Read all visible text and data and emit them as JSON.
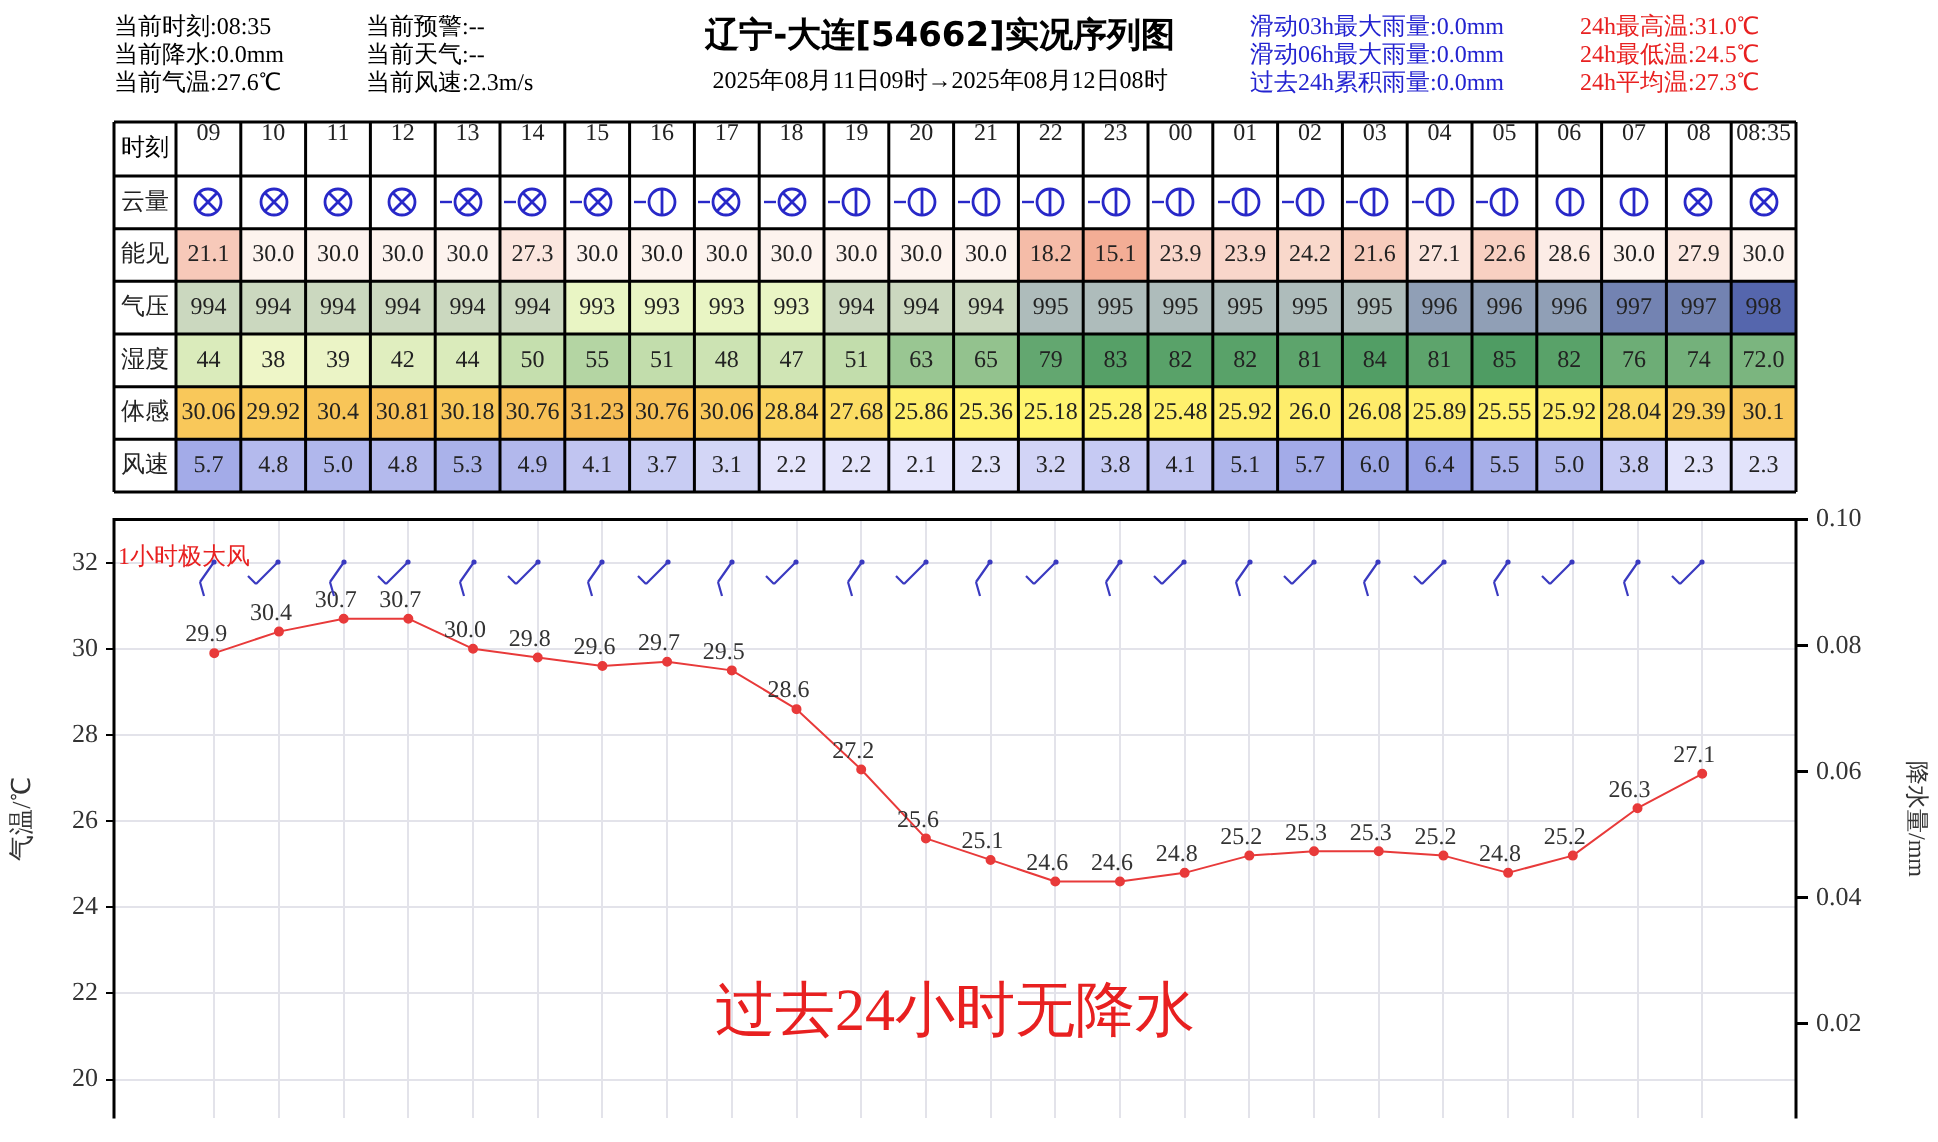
{
  "chart_data": [
    {
      "type": "heatmap",
      "title": "辽宁-大连[54662]实况序列图",
      "subtitle": "2025年08月11日09时→2025年08月12日08时",
      "xlabel": "时刻",
      "categories": [
        "09",
        "10",
        "11",
        "12",
        "13",
        "14",
        "15",
        "16",
        "17",
        "18",
        "19",
        "20",
        "21",
        "22",
        "23",
        "00",
        "01",
        "02",
        "03",
        "04",
        "05",
        "06",
        "07",
        "08",
        "08:35"
      ],
      "y_categories": [
        "云量",
        "能见",
        "气压",
        "湿度",
        "体感",
        "风速"
      ],
      "cells": [
        [
          null,
          null,
          null,
          null,
          null,
          null,
          null,
          null,
          null,
          null,
          null,
          null,
          null,
          null,
          null,
          null,
          null,
          null,
          null,
          null,
          null,
          null,
          null,
          null,
          null
        ],
        [
          21.1,
          30.0,
          30.0,
          30.0,
          30.0,
          27.3,
          30.0,
          30.0,
          30.0,
          30.0,
          30.0,
          30.0,
          30.0,
          18.2,
          15.1,
          23.9,
          23.9,
          24.2,
          21.6,
          27.1,
          22.6,
          28.6,
          30.0,
          27.9,
          30.0
        ],
        [
          994,
          994,
          994,
          994,
          994,
          994,
          993,
          993,
          993,
          993,
          994,
          994,
          994,
          995,
          995,
          995,
          995,
          995,
          995,
          996,
          996,
          996,
          997,
          997,
          998
        ],
        [
          44,
          38,
          39,
          42,
          44,
          50,
          55,
          51,
          48,
          47,
          51,
          63,
          65,
          79,
          83,
          82,
          82,
          81,
          84,
          81,
          85,
          82,
          76,
          74,
          72.0
        ],
        [
          30.06,
          29.92,
          30.4,
          30.81,
          30.18,
          30.76,
          31.23,
          30.76,
          30.06,
          28.84,
          27.68,
          25.86,
          25.36,
          25.18,
          25.28,
          25.48,
          25.92,
          26.0,
          26.08,
          25.89,
          25.55,
          25.92,
          28.04,
          29.39,
          30.1
        ],
        [
          5.7,
          4.8,
          5.0,
          4.8,
          5.3,
          4.9,
          4.1,
          3.7,
          3.1,
          2.2,
          2.2,
          2.1,
          2.3,
          3.2,
          3.8,
          4.1,
          5.1,
          5.7,
          6.0,
          6.4,
          5.5,
          5.0,
          3.8,
          2.3,
          2.3
        ]
      ],
      "cell_labels": [
        [
          null,
          null,
          null,
          null,
          null,
          null,
          null,
          null,
          null,
          null,
          null,
          null,
          null,
          null,
          null,
          null,
          null,
          null,
          null,
          null,
          null,
          null,
          null,
          null,
          null
        ],
        [
          "21.1",
          "30.0",
          "30.0",
          "30.0",
          "30.0",
          "27.3",
          "30.0",
          "30.0",
          "30.0",
          "30.0",
          "30.0",
          "30.0",
          "30.0",
          "18.2",
          "15.1",
          "23.9",
          "23.9",
          "24.2",
          "21.6",
          "27.1",
          "22.6",
          "28.6",
          "30.0",
          "27.9",
          "30.0"
        ],
        [
          "994",
          "994",
          "994",
          "994",
          "994",
          "994",
          "993",
          "993",
          "993",
          "993",
          "994",
          "994",
          "994",
          "995",
          "995",
          "995",
          "995",
          "995",
          "995",
          "996",
          "996",
          "996",
          "997",
          "997",
          "998"
        ],
        [
          "44",
          "38",
          "39",
          "42",
          "44",
          "50",
          "55",
          "51",
          "48",
          "47",
          "51",
          "63",
          "65",
          "79",
          "83",
          "82",
          "82",
          "81",
          "84",
          "81",
          "85",
          "82",
          "76",
          "74",
          "72.0"
        ],
        [
          "30.06",
          "29.92",
          "30.4",
          "30.81",
          "30.18",
          "30.76",
          "31.23",
          "30.76",
          "30.06",
          "28.84",
          "27.68",
          "25.86",
          "25.36",
          "25.18",
          "25.28",
          "25.48",
          "25.92",
          "26.0",
          "26.08",
          "25.89",
          "25.55",
          "25.92",
          "28.04",
          "29.39",
          "30.1"
        ],
        [
          "5.7",
          "4.8",
          "5.0",
          "4.8",
          "5.3",
          "4.9",
          "4.1",
          "3.7",
          "3.1",
          "2.2",
          "2.2",
          "2.1",
          "2.3",
          "3.2",
          "3.8",
          "4.1",
          "5.1",
          "5.7",
          "6.0",
          "6.4",
          "5.5",
          "5.0",
          "3.8",
          "2.3",
          "2.3"
        ]
      ],
      "annotations": [
        "当前时刻:08:35",
        "当前降水:0.0mm",
        "当前气温:27.6℃",
        "当前预警:--",
        "当前天气:--",
        "当前风速:2.3m/s",
        "滑动03h最大雨量:0.0mm",
        "滑动06h最大雨量:0.0mm",
        "过去24h累积雨量:0.0mm",
        "24h最高温:31.0℃",
        "24h最低温:24.5℃",
        "24h平均温:27.3℃"
      ]
    },
    {
      "type": "line",
      "categories": [
        null,
        null,
        null,
        null,
        null,
        null,
        null,
        null,
        null,
        null,
        null,
        null,
        null,
        null,
        null,
        null,
        null,
        null,
        null,
        null,
        null,
        null,
        null,
        null
      ],
      "series": [
        {
          "color": "#e83a3a",
          "values": [
            29.9,
            30.4,
            30.7,
            30.7,
            30.0,
            29.8,
            29.6,
            29.7,
            29.5,
            28.6,
            27.2,
            25.6,
            25.1,
            24.6,
            24.6,
            24.8,
            25.2,
            25.3,
            25.3,
            25.2,
            24.8,
            25.2,
            26.3,
            27.1
          ],
          "value_labels": [
            "29.9",
            "30.4",
            "30.7",
            "30.7",
            "30.0",
            "29.8",
            "29.6",
            "29.7",
            "29.5",
            "28.6",
            "27.2",
            "25.6",
            "25.1",
            "24.6",
            "24.6",
            "24.8",
            "25.2",
            "25.3",
            "25.3",
            "25.2",
            "24.8",
            "25.2",
            "26.3",
            "27.1"
          ]
        }
      ],
      "ylabel": "气温/℃",
      "y2label": "降水量/mm",
      "ylim": [
        19.1,
        33.0
      ],
      "yticks": [
        20,
        22,
        24,
        26,
        28,
        30,
        32
      ],
      "y2lim": [
        0.005,
        0.1
      ],
      "y2ticks": [
        0.02,
        0.04,
        0.06,
        {
          "value": 0.1,
          "label": "0.10"
        },
        0.08
      ],
      "grid": true,
      "marker": "circle",
      "annotations": [
        "1小时极大风",
        "过去24小时无降水"
      ]
    }
  ]
}
